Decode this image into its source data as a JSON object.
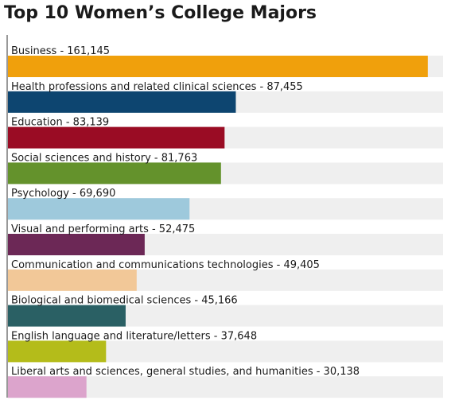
{
  "chart_data": {
    "type": "bar",
    "orientation": "horizontal",
    "title": "Top 10 Women’s College Majors",
    "xlabel": "",
    "ylabel": "",
    "grid": false,
    "xlim": [
      0,
      167000
    ],
    "categories": [
      "Business",
      "Health professions and related clinical sciences",
      "Education",
      "Social sciences and history",
      "Psychology",
      "Visual and performing arts",
      "Communication and communications technologies",
      "Biological and biomedical sciences",
      "English language and literature/letters",
      "Liberal arts and sciences, general studies, and humanities"
    ],
    "values": [
      161145,
      87455,
      83139,
      81763,
      69690,
      52475,
      49405,
      45166,
      37648,
      30138
    ],
    "labels": [
      "Business - 161,145",
      "Health professions and related clinical sciences - 87,455",
      "Education - 83,139",
      "Social sciences and history - 81,763",
      "Psychology - 69,690",
      "Visual and performing arts - 52,475",
      "Communication and communications technologies - 49,405",
      "Biological and biomedical sciences - 45,166",
      "English language and literature/letters - 37,648",
      "Liberal arts and sciences, general studies, and humanities - 30,138"
    ],
    "colors": [
      "#f0a00c",
      "#0d4570",
      "#9a0c24",
      "#64922c",
      "#9ec9dc",
      "#6c2856",
      "#f2c898",
      "#2a6064",
      "#b4bc1a",
      "#dca4cc"
    ],
    "track_color": "#efefef",
    "axis_color": "#333333"
  }
}
